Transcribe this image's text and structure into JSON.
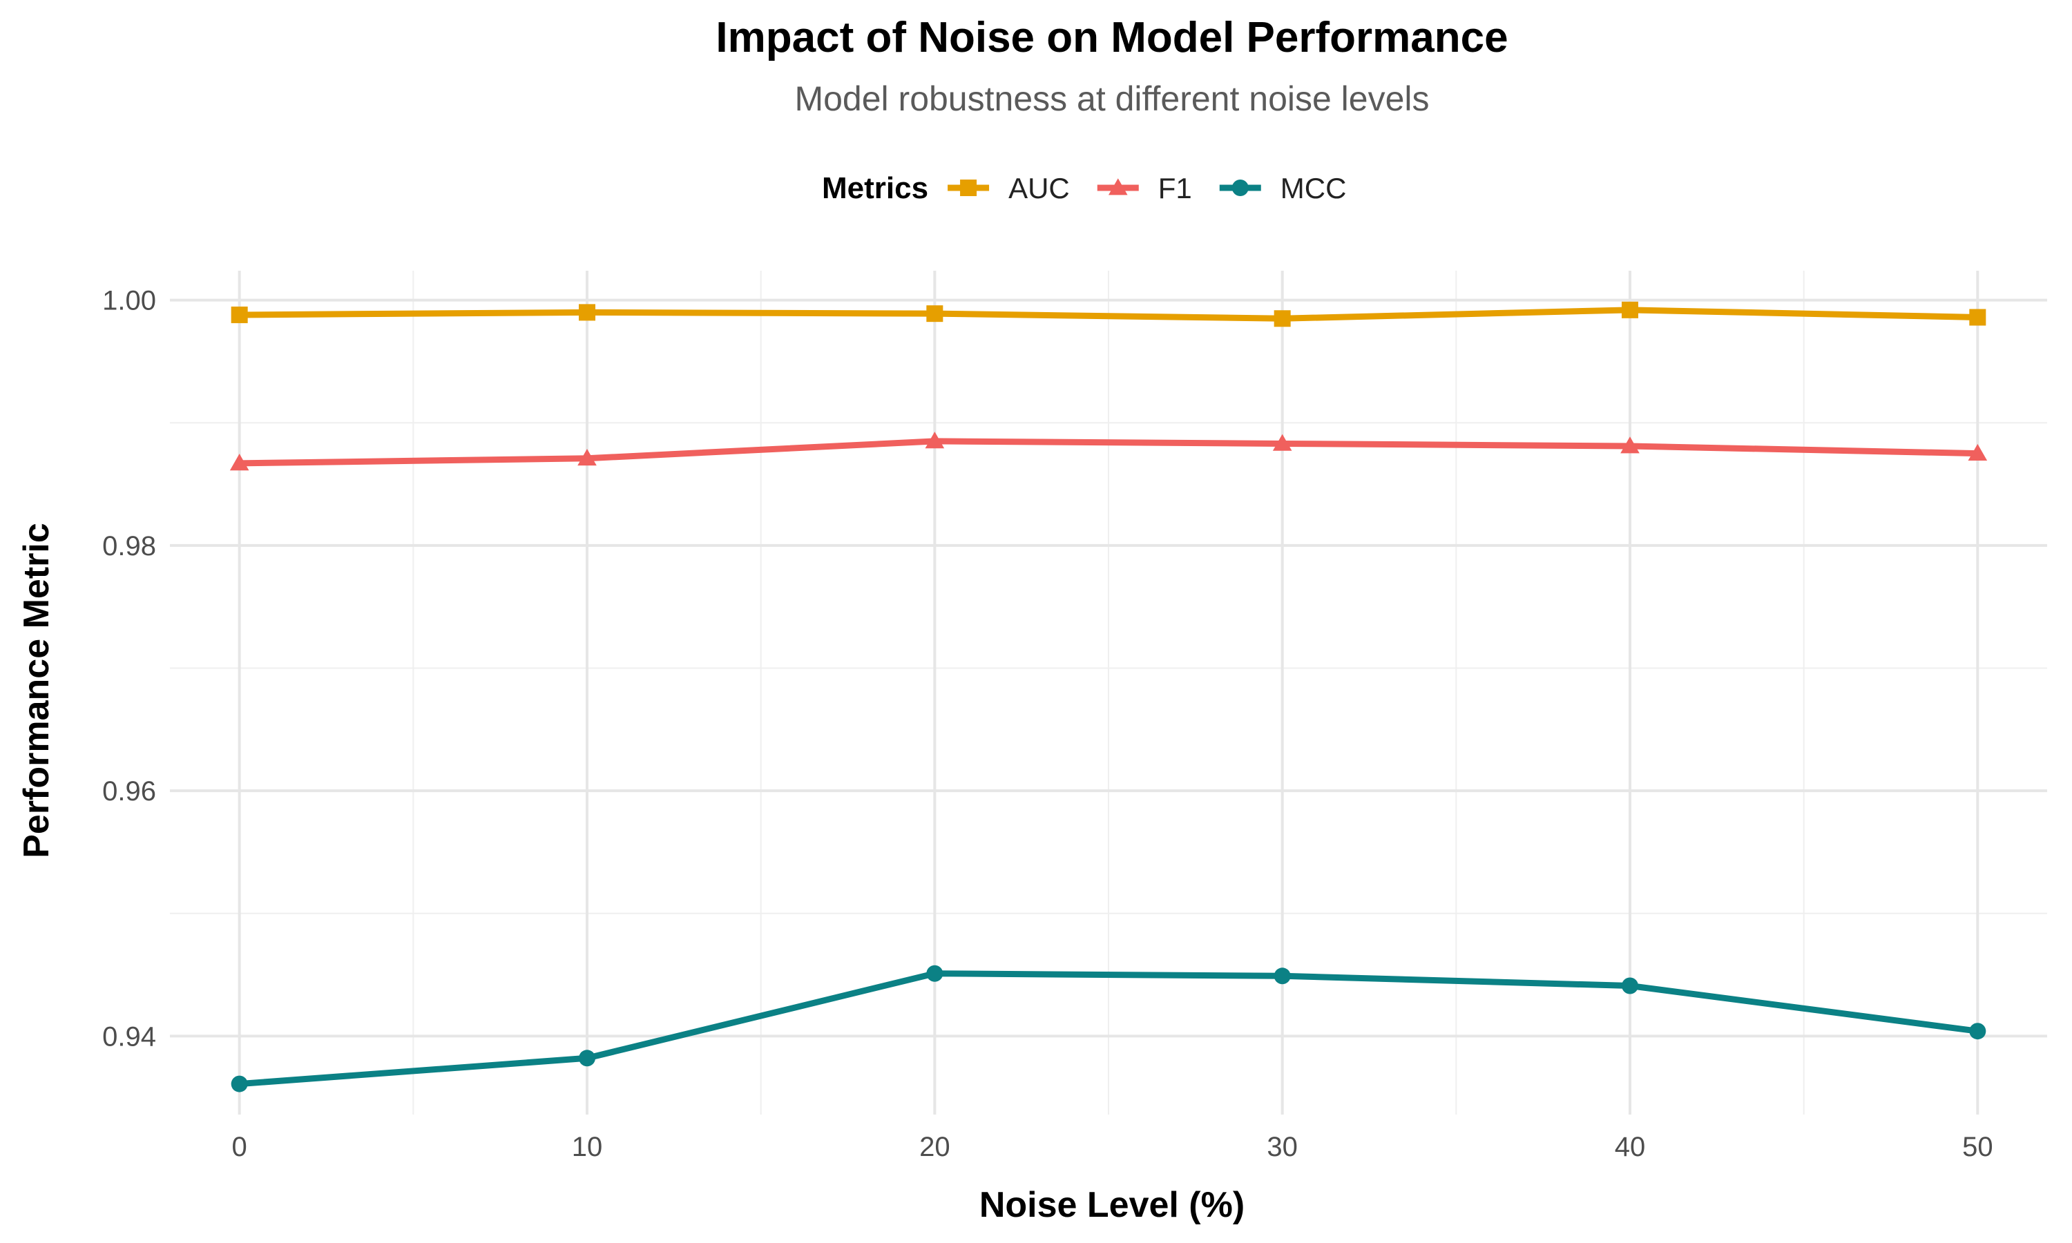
{
  "chart_data": {
    "type": "line",
    "title": "Impact of Noise on Model Performance",
    "subtitle": "Model robustness at different noise levels",
    "xlabel": "Noise Level (%)",
    "ylabel": "Performance Metric",
    "x": [
      0,
      10,
      20,
      30,
      40,
      50
    ],
    "x_ticks": [
      "0",
      "10",
      "20",
      "30",
      "40",
      "50"
    ],
    "y_ticks": [
      "0.94",
      "0.96",
      "0.98",
      "1.00"
    ],
    "xlim": [
      -2,
      52
    ],
    "ylim": [
      0.9336,
      1.0024
    ],
    "grid": true,
    "legend": {
      "title": "Metrics",
      "position": "top"
    },
    "series": [
      {
        "name": "AUC",
        "color": "#E69F00",
        "marker": "square",
        "values": [
          0.9988,
          0.999,
          0.9989,
          0.9985,
          0.9992,
          0.9986
        ]
      },
      {
        "name": "F1",
        "color": "#F0605D",
        "marker": "triangle",
        "values": [
          0.9867,
          0.9871,
          0.9885,
          0.9883,
          0.9881,
          0.9875
        ]
      },
      {
        "name": "MCC",
        "color": "#0B8185",
        "marker": "circle",
        "values": [
          0.9361,
          0.9382,
          0.9451,
          0.9449,
          0.9441,
          0.9404
        ]
      }
    ]
  }
}
